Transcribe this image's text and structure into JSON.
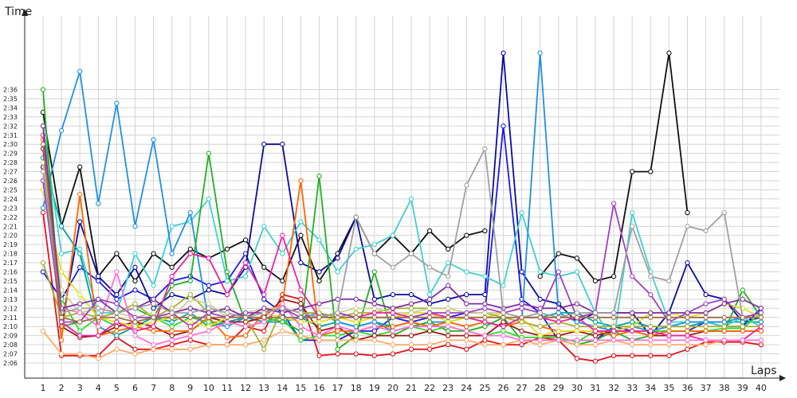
{
  "chart_data": {
    "type": "line",
    "xlabel": "Laps",
    "ylabel": "Time",
    "grid": true,
    "x_ticks": [
      1,
      2,
      3,
      4,
      5,
      6,
      7,
      8,
      9,
      10,
      11,
      12,
      13,
      14,
      15,
      16,
      17,
      18,
      19,
      20,
      21,
      22,
      23,
      24,
      25,
      26,
      27,
      28,
      29,
      30,
      31,
      32,
      33,
      34,
      35,
      36,
      37,
      38,
      39,
      40
    ],
    "y_ticks": [
      "2:06",
      "2:07",
      "2:08",
      "2:09",
      "2:10",
      "2:11",
      "2:12",
      "2:13",
      "2:14",
      "2:15",
      "2:16",
      "2:17",
      "2:18",
      "2:19",
      "2:20",
      "2:21",
      "2:22",
      "2:23",
      "2:24",
      "2:25",
      "2:26",
      "2:27",
      "2:28",
      "2:29",
      "2:30",
      "2:31",
      "2:32",
      "2:33",
      "2:34",
      "2:35",
      "2:36"
    ],
    "ylim_seconds": [
      125.2,
      157.5
    ],
    "series": [
      {
        "color": "#111111",
        "values": [
          153.5,
          141.0,
          147.5,
          135.5,
          138.0,
          135.0,
          138.0,
          136.5,
          138.5,
          137.5,
          138.5,
          139.5,
          136.5,
          135.0,
          140.0,
          135.0,
          138.0,
          142.0,
          138.0,
          140.0,
          138.0,
          140.5,
          138.5,
          140.0,
          140.5,
          null,
          null,
          135.5,
          138.0,
          137.5,
          135.0,
          135.5,
          147.0,
          147.0,
          160.0,
          142.5,
          null,
          null,
          null,
          null
        ]
      },
      {
        "color": "#e0141e",
        "values": [
          142.5,
          126.8,
          126.8,
          126.8,
          128.8,
          127.5,
          127.5,
          128.0,
          128.5,
          128.0,
          128.0,
          130.0,
          129.5,
          133.5,
          133.0,
          126.8,
          127.0,
          127.0,
          126.8,
          127.0,
          127.5,
          127.5,
          128.0,
          127.5,
          128.5,
          128.0,
          128.0,
          128.8,
          128.5,
          126.5,
          126.2,
          126.8,
          126.8,
          126.8,
          126.8,
          127.5,
          128.3,
          128.3,
          128.3,
          128.0
        ]
      },
      {
        "color": "#1a1ae6",
        "values": [
          136.0,
          133.0,
          136.5,
          135.0,
          133.0,
          134.0,
          133.0,
          135.0,
          135.5,
          134.5,
          135.0,
          138.0,
          133.0,
          131.5,
          128.5,
          128.5,
          128.5,
          129.5,
          129.5,
          131.0,
          130.5,
          131.0,
          131.0,
          131.5,
          131.5,
          152.0,
          133.0,
          131.5,
          128.5,
          128.5,
          128.5,
          130.0,
          129.5,
          129.5,
          129.5,
          129.5,
          130.5,
          130.0,
          130.0,
          132.0
        ]
      },
      {
        "color": "#0b0b9e",
        "values": [
          147.5,
          130.0,
          141.5,
          135.5,
          133.5,
          136.5,
          132.0,
          133.5,
          133.0,
          134.0,
          133.5,
          136.5,
          150.0,
          150.0,
          137.0,
          136.0,
          137.5,
          142.0,
          133.0,
          133.5,
          133.5,
          132.5,
          133.0,
          133.5,
          133.5,
          160.0,
          136.0,
          133.0,
          132.5,
          130.5,
          131.5,
          131.5,
          131.5,
          129.0,
          131.5,
          137.0,
          133.5,
          133.0,
          130.5,
          131.0
        ]
      },
      {
        "color": "#00a0a0",
        "values": [
          148.5,
          141.0,
          138.0,
          130.0,
          129.0,
          130.0,
          131.0,
          130.5,
          131.5,
          130.0,
          130.5,
          131.0,
          130.5,
          130.5,
          131.0,
          130.0,
          130.5,
          130.0,
          130.5,
          130.0,
          130.5,
          130.0,
          130.5,
          130.0,
          130.5,
          130.0,
          131.0,
          131.0,
          131.5,
          131.5,
          130.5,
          130.0,
          130.5,
          130.0,
          130.0,
          130.0,
          130.5,
          130.5,
          130.5,
          130.5
        ]
      },
      {
        "color": "#40d0d0",
        "values": [
          152.0,
          138.0,
          138.5,
          131.5,
          131.5,
          138.0,
          134.5,
          141.0,
          141.5,
          144.0,
          135.0,
          135.5,
          141.0,
          138.0,
          141.5,
          139.5,
          136.0,
          138.5,
          139.0,
          140.0,
          144.0,
          133.5,
          137.0,
          136.0,
          135.5,
          134.5,
          142.5,
          136.0,
          135.5,
          136.0,
          131.5,
          128.5,
          142.5,
          136.0,
          130.5,
          130.5,
          130.5,
          130.0,
          131.0,
          130.0
        ]
      },
      {
        "color": "#2090e0",
        "values": [
          143.0,
          151.5,
          158.0,
          143.5,
          154.5,
          141.0,
          150.5,
          138.0,
          142.5,
          130.5,
          130.0,
          131.0,
          130.5,
          130.5,
          131.0,
          131.5,
          130.5,
          130.0,
          130.5,
          129.5,
          130.0,
          130.5,
          130.5,
          131.0,
          130.5,
          130.0,
          130.5,
          160.0,
          131.5,
          130.5,
          130.0,
          129.5,
          130.0,
          129.5,
          130.0,
          130.5,
          130.5,
          130.5,
          131.0,
          131.0
        ]
      },
      {
        "color": "#20b020",
        "values": [
          156.0,
          130.0,
          130.5,
          131.0,
          131.5,
          132.0,
          131.0,
          134.5,
          135.0,
          149.0,
          136.0,
          130.5,
          131.0,
          130.5,
          129.5,
          146.5,
          127.5,
          129.0,
          136.0,
          129.0,
          130.0,
          130.5,
          129.5,
          129.5,
          130.0,
          131.0,
          128.5,
          128.5,
          128.5,
          128.0,
          128.5,
          129.5,
          128.5,
          129.0,
          129.5,
          129.5,
          129.5,
          129.5,
          134.0,
          131.0
        ]
      },
      {
        "color": "#2adc2a",
        "values": [
          146.0,
          133.0,
          129.5,
          131.0,
          130.0,
          130.5,
          131.0,
          130.0,
          131.0,
          130.5,
          130.5,
          130.0,
          130.5,
          131.0,
          128.5,
          129.0,
          129.0,
          129.5,
          129.0,
          129.5,
          130.0,
          129.5,
          130.0,
          129.5,
          129.0,
          129.5,
          128.8,
          128.8,
          128.8,
          128.3,
          129.5,
          129.5,
          129.5,
          129.5,
          129.5,
          129.5,
          129.5,
          129.8,
          129.8,
          131.5
        ]
      },
      {
        "color": "#a01818",
        "values": [
          149.5,
          130.0,
          128.8,
          129.0,
          130.0,
          130.5,
          130.0,
          129.0,
          129.5,
          131.0,
          130.5,
          130.5,
          131.0,
          133.0,
          132.5,
          129.5,
          130.0,
          128.5,
          129.0,
          129.0,
          129.0,
          129.5,
          129.0,
          129.0,
          129.0,
          130.5,
          129.5,
          129.0,
          129.0,
          129.5,
          129.0,
          129.5,
          129.5,
          129.0,
          129.0,
          129.0,
          129.5,
          129.5,
          129.5,
          129.5
        ]
      },
      {
        "color": "#ff6600",
        "values": [
          150.5,
          128.5,
          144.5,
          129.0,
          129.5,
          130.0,
          129.5,
          129.5,
          129.5,
          131.0,
          128.8,
          129.0,
          131.5,
          132.5,
          146.0,
          129.0,
          129.5,
          129.5,
          130.0,
          130.0,
          130.5,
          130.0,
          130.5,
          130.0,
          130.5,
          130.0,
          130.5,
          130.0,
          129.5,
          129.5,
          129.5,
          129.0,
          129.5,
          129.0,
          129.5,
          129.5,
          129.5,
          129.5,
          129.5,
          129.5
        ]
      },
      {
        "color": "#ffaa66",
        "values": [
          129.5,
          127.0,
          127.0,
          126.5,
          127.5,
          127.0,
          127.5,
          127.5,
          127.5,
          128.0,
          128.0,
          128.0,
          128.5,
          129.5,
          129.0,
          128.5,
          128.5,
          128.5,
          128.5,
          128.0,
          128.0,
          128.0,
          128.5,
          128.5,
          128.0,
          128.0,
          128.5,
          128.0,
          128.5,
          128.0,
          128.0,
          128.5,
          128.0,
          128.0,
          128.0,
          128.0,
          128.0,
          128.5,
          128.5,
          128.5
        ]
      },
      {
        "color": "#e0e020",
        "values": [
          145.0,
          136.0,
          133.5,
          131.0,
          130.5,
          130.0,
          130.5,
          131.0,
          130.5,
          130.0,
          131.0,
          131.0,
          131.5,
          131.0,
          130.5,
          130.5,
          131.0,
          130.5,
          131.0,
          131.0,
          131.5,
          131.5,
          130.5,
          131.0,
          131.0,
          131.5,
          131.0,
          129.0,
          129.5,
          129.5,
          129.5,
          129.5,
          130.0,
          131.5,
          131.5,
          131.0,
          131.5,
          132.5,
          132.0,
          131.0
        ]
      },
      {
        "color": "#a8b030",
        "values": [
          137.0,
          131.0,
          131.5,
          131.0,
          131.5,
          132.5,
          131.0,
          132.0,
          133.5,
          131.5,
          132.0,
          131.0,
          127.5,
          132.0,
          131.5,
          131.5,
          131.0,
          131.5,
          131.5,
          132.0,
          132.0,
          132.0,
          132.0,
          131.5,
          131.5,
          131.0,
          130.5,
          130.0,
          130.5,
          130.0,
          130.0,
          130.0,
          130.0,
          130.0,
          130.0,
          130.0,
          130.0,
          130.0,
          130.0,
          130.0
        ]
      },
      {
        "color": "#c8d090",
        "values": [
          148.0,
          134.0,
          131.5,
          132.0,
          131.5,
          131.0,
          131.5,
          131.0,
          133.0,
          132.5,
          131.0,
          131.5,
          132.0,
          132.0,
          131.5,
          131.0,
          131.5,
          132.0,
          132.0,
          131.5,
          131.5,
          132.0,
          132.0,
          131.5,
          131.5,
          131.5,
          131.0,
          131.0,
          131.0,
          131.0,
          131.0,
          131.0,
          131.0,
          131.0,
          131.0,
          131.0,
          131.0,
          131.0,
          131.0,
          131.0
        ]
      },
      {
        "color": "#f020a0",
        "values": [
          151.0,
          130.5,
          129.0,
          129.0,
          130.5,
          129.5,
          130.0,
          135.5,
          138.0,
          137.5,
          133.5,
          137.0,
          133.5,
          140.0,
          134.0,
          131.0,
          131.5,
          131.0,
          131.5,
          131.5,
          131.0,
          131.5,
          131.0,
          131.0,
          130.5,
          130.0,
          131.0,
          131.0,
          130.5,
          131.0,
          129.5,
          129.5,
          129.5,
          129.5,
          129.0,
          129.0,
          128.5,
          128.5,
          128.5,
          130.0
        ]
      },
      {
        "color": "#ff70d8",
        "values": [
          146.0,
          132.0,
          131.5,
          130.0,
          136.0,
          129.0,
          128.0,
          128.5,
          129.0,
          129.5,
          130.5,
          130.0,
          130.5,
          132.5,
          130.0,
          129.0,
          130.0,
          129.5,
          130.0,
          129.5,
          130.0,
          130.0,
          130.0,
          129.5,
          129.0,
          129.0,
          128.5,
          128.5,
          128.5,
          128.5,
          128.5,
          128.5,
          128.5,
          128.5,
          128.5,
          128.5,
          128.5,
          128.5,
          128.5,
          128.5
        ]
      },
      {
        "color": "#a040c0",
        "values": [
          146.0,
          130.5,
          130.5,
          133.0,
          132.5,
          131.0,
          131.0,
          131.5,
          130.0,
          131.5,
          131.0,
          131.5,
          131.5,
          132.0,
          131.0,
          131.0,
          131.5,
          131.0,
          131.0,
          131.0,
          131.0,
          131.5,
          131.5,
          131.5,
          132.0,
          131.5,
          132.0,
          131.5,
          136.0,
          131.0,
          131.5,
          143.5,
          135.5,
          133.5,
          130.5,
          131.5,
          132.5,
          133.0,
          131.0,
          131.5
        ]
      },
      {
        "color": "#8030a0",
        "values": [
          152.0,
          132.0,
          132.5,
          133.0,
          131.5,
          132.0,
          133.0,
          131.5,
          132.0,
          131.5,
          132.0,
          131.0,
          132.0,
          131.5,
          132.0,
          132.5,
          133.0,
          133.0,
          132.5,
          132.0,
          132.5,
          133.0,
          134.5,
          132.5,
          132.5,
          132.0,
          132.5,
          132.0,
          132.0,
          132.5,
          131.5,
          131.5,
          131.5,
          131.5,
          131.5,
          131.5,
          131.5,
          132.5,
          133.0,
          132.0
        ]
      },
      {
        "color": "#a0a0a0",
        "values": [
          147.0,
          131.5,
          132.0,
          132.0,
          131.5,
          132.0,
          132.5,
          131.5,
          131.5,
          132.0,
          131.5,
          131.0,
          131.5,
          132.0,
          131.5,
          131.0,
          131.5,
          142.0,
          138.0,
          136.5,
          138.0,
          136.5,
          135.5,
          145.5,
          149.5,
          131.5,
          131.0,
          131.5,
          131.0,
          131.5,
          131.5,
          131.5,
          141.0,
          135.5,
          135.0,
          141.0,
          140.5,
          142.5,
          131.0,
          131.0
        ]
      },
      {
        "color": "#a0704a",
        "values": [
          150.0,
          131.0,
          130.5,
          131.0,
          131.0,
          130.5,
          131.0,
          131.0,
          131.0,
          131.0,
          131.0,
          131.0,
          131.0,
          131.0,
          131.0,
          131.0,
          131.0,
          131.0,
          131.0,
          131.0,
          131.0,
          131.0,
          131.0,
          131.0,
          131.0,
          131.0,
          131.0,
          131.0,
          131.0,
          131.0,
          131.0,
          131.0,
          131.0,
          131.0,
          131.0,
          131.0,
          131.0,
          131.0,
          131.0,
          131.0
        ]
      }
    ]
  }
}
